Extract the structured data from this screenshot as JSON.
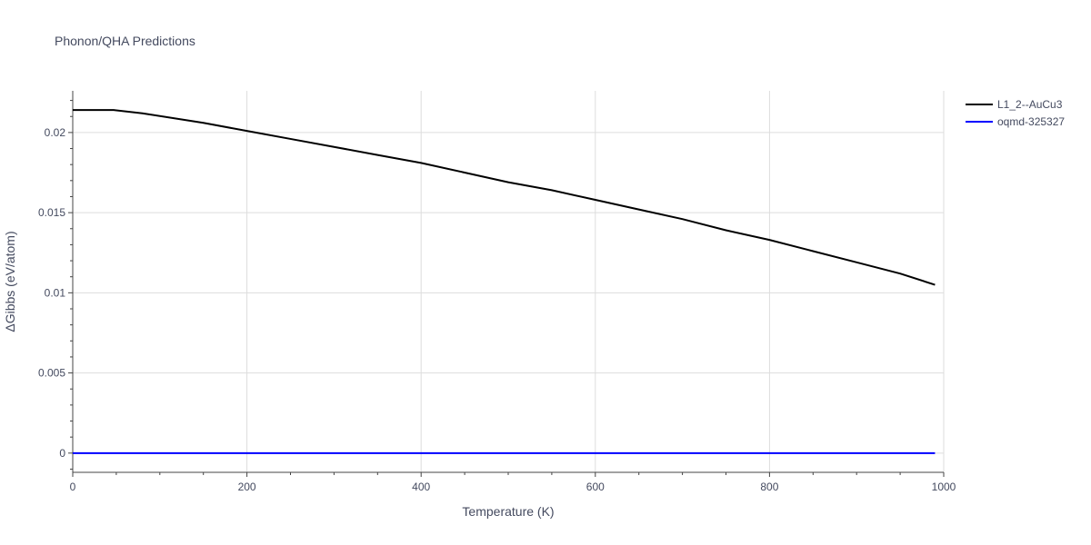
{
  "chart_data": {
    "type": "line",
    "title": "Phonon/QHA Predictions",
    "xlabel": "Temperature (K)",
    "ylabel": "ΔGibbs (eV/atom)",
    "xlim": [
      0,
      1000
    ],
    "ylim": [
      -0.0012,
      0.0226
    ],
    "x_ticks": [
      0,
      200,
      400,
      600,
      800,
      1000
    ],
    "x_tick_labels": [
      "0",
      "200",
      "400",
      "600",
      "800",
      "1000"
    ],
    "y_ticks": [
      0,
      0.005,
      0.01,
      0.015,
      0.02
    ],
    "y_tick_labels": [
      "0",
      "0.005",
      "0.01",
      "0.015",
      "0.02"
    ],
    "grid": true,
    "legend_position": "top-right",
    "series": [
      {
        "name": "L1_2--AuCu3",
        "color": "#000000",
        "x": [
          0,
          20,
          47,
          80,
          150,
          200,
          250,
          300,
          350,
          400,
          450,
          500,
          550,
          600,
          650,
          700,
          750,
          800,
          850,
          900,
          950,
          990
        ],
        "y": [
          0.0214,
          0.0214,
          0.0214,
          0.0212,
          0.0206,
          0.0201,
          0.0196,
          0.0191,
          0.0186,
          0.0181,
          0.0175,
          0.0169,
          0.0164,
          0.0158,
          0.0152,
          0.0146,
          0.0139,
          0.0133,
          0.0126,
          0.0119,
          0.0112,
          0.0105
        ]
      },
      {
        "name": "oqmd-325327",
        "color": "#0000ff",
        "x": [
          0,
          990
        ],
        "y": [
          0,
          0
        ]
      }
    ]
  }
}
